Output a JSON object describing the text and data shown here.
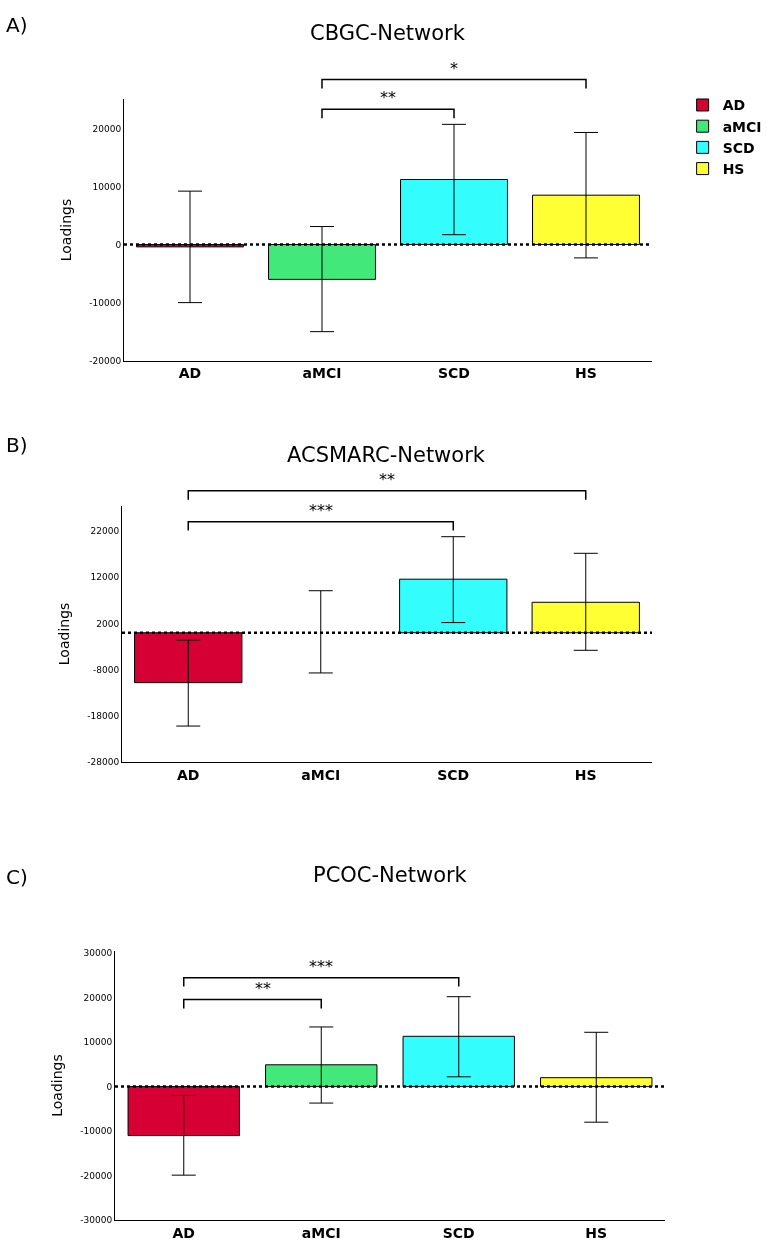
{
  "chart_data": [
    {
      "type": "bar",
      "title": "CBGC-Network",
      "ylabel": "Loadings",
      "categories": [
        "AD",
        "aMCI",
        "SCD",
        "HS"
      ],
      "series": [
        {
          "name": "AD",
          "color": "#d70034",
          "values": [
            -400,
            null,
            null,
            null
          ],
          "errors": [
            [
              -10000,
              9200
            ],
            null,
            null,
            null
          ]
        },
        {
          "name": "aMCI",
          "color": "#42e87a",
          "values": [
            null,
            -6000,
            null,
            null
          ],
          "errors": [
            null,
            [
              -15000,
              3100
            ],
            null,
            null
          ]
        },
        {
          "name": "SCD",
          "color": "#33fdfd",
          "values": [
            null,
            null,
            11200,
            null
          ],
          "errors": [
            null,
            null,
            [
              1700,
              20700
            ],
            null
          ]
        },
        {
          "name": "HS",
          "color": "#ffff33",
          "values": [
            null,
            null,
            null,
            8500
          ],
          "errors": [
            null,
            null,
            null,
            [
              -2300,
              19300
            ]
          ]
        }
      ],
      "ylim": [
        -20000,
        25000
      ],
      "yticks": [
        -20000,
        -10000,
        0,
        10000,
        20000
      ],
      "ref_lines": [
        {
          "axis": "y",
          "value": 0,
          "line_style": "dotted",
          "color": "#000000"
        }
      ],
      "annotations": [
        "A)",
        "*",
        "**"
      ],
      "legend": "right"
    },
    {
      "type": "bar",
      "title": "ACSMARC-Network",
      "ylabel": "Loadings",
      "categories": [
        "AD",
        "aMCI",
        "SCD",
        "HS"
      ],
      "values": [
        -10800,
        0,
        11600,
        6600
      ],
      "colors": [
        "#d70034",
        "#42e87a",
        "#33fdfd",
        "#ffff33"
      ],
      "errors": [
        [
          -20200,
          -1600
        ],
        [
          -8700,
          9100
        ],
        [
          2200,
          20800
        ],
        [
          -3800,
          17200
        ]
      ],
      "ylim": [
        -28000,
        27500
      ],
      "yticks": [
        -28000,
        -18000,
        -8000,
        2000,
        12000,
        22000
      ],
      "ref_lines": [
        {
          "axis": "y",
          "value": 0,
          "line_style": "dotted",
          "color": "#000000"
        }
      ],
      "annotations": [
        "B)",
        "**",
        "***"
      ]
    },
    {
      "type": "bar",
      "title": "PCOC-Network",
      "ylabel": "Loadings",
      "categories": [
        "AD",
        "aMCI",
        "SCD",
        "HS"
      ],
      "values": [
        -11000,
        4900,
        11300,
        2000
      ],
      "colors": [
        "#d70034",
        "#42e87a",
        "#33fdfd",
        "#ffff33"
      ],
      "errors": [
        [
          -19900,
          -2000
        ],
        [
          -3700,
          13400
        ],
        [
          2200,
          20200
        ],
        [
          -8000,
          12200
        ]
      ],
      "ylim": [
        -30000,
        30500
      ],
      "yticks": [
        -30000,
        -20000,
        -10000,
        0,
        10000,
        20000,
        30000
      ],
      "ref_lines": [
        {
          "axis": "y",
          "value": 0,
          "line_style": "dotted",
          "color": "#000000"
        }
      ],
      "annotations": [
        "C)",
        "***",
        "**"
      ]
    }
  ]
}
